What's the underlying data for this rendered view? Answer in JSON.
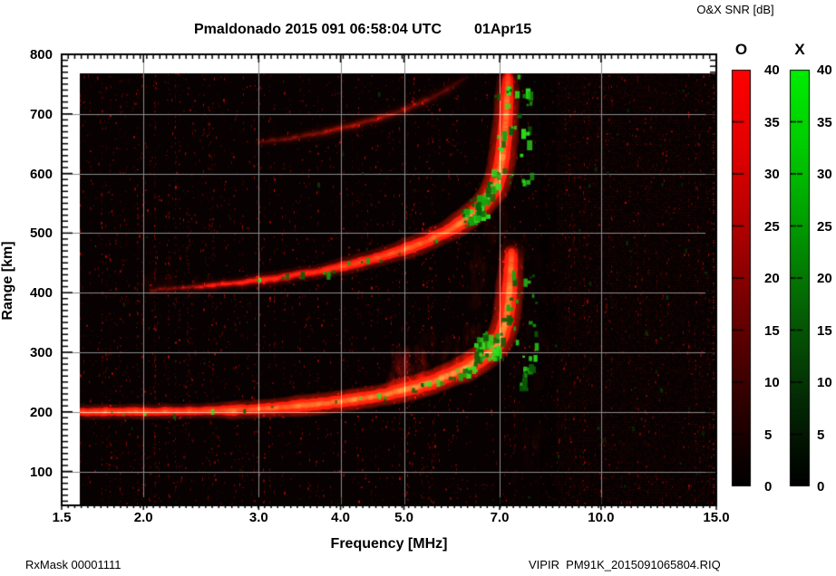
{
  "header": {
    "title": "Pmaldonado 2015 091 06:58:04 UTC",
    "date": "01Apr15",
    "colorbar_title": "O&X SNR [dB]"
  },
  "footer": {
    "left": "RxMask 00001111",
    "right": "VIPIR  PM91K_2015091065804.RIQ"
  },
  "chart_data": {
    "type": "heatmap",
    "title": "Pmaldonado 2015 091 06:58:04 UTC 01Apr15",
    "xlabel": "Frequency [MHz]",
    "ylabel": "Range [km]",
    "x_scale": "log",
    "xlim": [
      1.5,
      15.0
    ],
    "ylim": [
      43,
      800
    ],
    "grid": true,
    "x_ticks": [
      1.5,
      2.0,
      3.0,
      4.0,
      5.0,
      7.0,
      10.0,
      15.0
    ],
    "x_tick_labels": [
      "1.5",
      "2.0",
      "3.0",
      "4.0",
      "5.0",
      "7.0",
      "10.0",
      "15.0"
    ],
    "y_ticks": [
      100,
      200,
      300,
      400,
      500,
      600,
      700,
      800
    ],
    "y_tick_labels": [
      "100",
      "200",
      "300",
      "400",
      "500",
      "600",
      "700",
      "800"
    ],
    "background_color": "#070101",
    "grid_color": "#8c8c8c",
    "o_mode_color": "#ff1e0c",
    "x_mode_color": "#2bd41e",
    "foF2_MHz": 7.3,
    "colorbars": [
      {
        "label": "O",
        "units": "dB",
        "range": [
          0,
          40
        ],
        "ticks": [
          0,
          5,
          10,
          15,
          20,
          25,
          30,
          35,
          40
        ],
        "tick_labels": [
          "0",
          "5",
          "10",
          "15",
          "20",
          "25",
          "30",
          "35",
          "40"
        ],
        "gradient_stops": [
          [
            0,
            "#ff0000"
          ],
          [
            0.18,
            "#e40000"
          ],
          [
            0.38,
            "#b00000"
          ],
          [
            0.58,
            "#6f0000"
          ],
          [
            0.78,
            "#330000"
          ],
          [
            0.93,
            "#0e0000"
          ],
          [
            1,
            "#000000"
          ]
        ]
      },
      {
        "label": "X",
        "units": "dB",
        "range": [
          0,
          40
        ],
        "ticks": [
          0,
          5,
          10,
          15,
          20,
          25,
          30,
          35,
          40
        ],
        "tick_labels": [
          "0",
          "5",
          "10",
          "15",
          "20",
          "25",
          "30",
          "35",
          "40"
        ],
        "gradient_stops": [
          [
            0,
            "#00ee00"
          ],
          [
            0.18,
            "#00cc00"
          ],
          [
            0.38,
            "#009a00"
          ],
          [
            0.58,
            "#056005"
          ],
          [
            0.78,
            "#042d04"
          ],
          [
            0.93,
            "#010c01"
          ],
          [
            1,
            "#000000"
          ]
        ]
      }
    ],
    "series": [
      {
        "name": "F-region 1-hop echo (O-mode)",
        "mode": "O",
        "points": [
          [
            1.6,
            200,
            5,
            0.85
          ],
          [
            1.75,
            200,
            5,
            0.95
          ],
          [
            1.95,
            200,
            5,
            0.9
          ],
          [
            2.15,
            200,
            5,
            0.8
          ],
          [
            2.35,
            201,
            5,
            0.9
          ],
          [
            2.55,
            202,
            5,
            0.95
          ],
          [
            2.75,
            203,
            6,
            0.95
          ],
          [
            3.0,
            205,
            6,
            0.95
          ],
          [
            3.2,
            207,
            6,
            1.0
          ],
          [
            3.45,
            210,
            7,
            1.0
          ],
          [
            3.7,
            213,
            7,
            1.0
          ],
          [
            3.95,
            217,
            7,
            1.0
          ],
          [
            4.2,
            221,
            7,
            1.0
          ],
          [
            4.45,
            225,
            7,
            1.0
          ],
          [
            4.7,
            230,
            7,
            1.0
          ],
          [
            4.95,
            235,
            8,
            1.0
          ],
          [
            5.2,
            241,
            8,
            0.95
          ],
          [
            5.45,
            248,
            8,
            0.95
          ],
          [
            5.7,
            256,
            8,
            0.9
          ],
          [
            5.95,
            264,
            8,
            0.9
          ],
          [
            6.2,
            273,
            9,
            0.9
          ],
          [
            6.45,
            284,
            9,
            0.9
          ],
          [
            6.7,
            296,
            9,
            0.85
          ],
          [
            6.9,
            310,
            9,
            0.85
          ],
          [
            7.05,
            328,
            9,
            0.9
          ],
          [
            7.15,
            350,
            9,
            0.9
          ],
          [
            7.21,
            378,
            9,
            0.9
          ],
          [
            7.25,
            408,
            9,
            0.85
          ],
          [
            7.28,
            440,
            8,
            0.75
          ],
          [
            7.3,
            468,
            8,
            0.6
          ]
        ]
      },
      {
        "name": "F-region 2-hop echo (O-mode)",
        "mode": "O",
        "points": [
          [
            2.05,
            404,
            3,
            0.22
          ],
          [
            2.3,
            408,
            3,
            0.3
          ],
          [
            2.55,
            412,
            4,
            0.45
          ],
          [
            2.8,
            417,
            4,
            0.5
          ],
          [
            3.05,
            421,
            5,
            0.55
          ],
          [
            3.3,
            427,
            5,
            0.55
          ],
          [
            3.55,
            432,
            5,
            0.6
          ],
          [
            3.8,
            438,
            5,
            0.6
          ],
          [
            4.05,
            444,
            6,
            0.65
          ],
          [
            4.3,
            451,
            6,
            0.65
          ],
          [
            4.55,
            458,
            6,
            0.7
          ],
          [
            4.8,
            466,
            6,
            0.7
          ],
          [
            5.05,
            474,
            7,
            0.75
          ],
          [
            5.3,
            482,
            7,
            0.75
          ],
          [
            5.55,
            492,
            7,
            0.8
          ],
          [
            5.8,
            502,
            7,
            0.8
          ],
          [
            6.05,
            514,
            8,
            0.8
          ],
          [
            6.3,
            528,
            8,
            0.85
          ],
          [
            6.55,
            544,
            8,
            0.85
          ],
          [
            6.75,
            560,
            8,
            0.85
          ],
          [
            6.9,
            578,
            9,
            0.9
          ],
          [
            7.0,
            600,
            9,
            0.85
          ],
          [
            7.07,
            628,
            9,
            0.85
          ],
          [
            7.12,
            660,
            9,
            0.8
          ],
          [
            7.16,
            695,
            8,
            0.8
          ],
          [
            7.18,
            725,
            8,
            0.75
          ],
          [
            7.2,
            752,
            7,
            0.7
          ],
          [
            7.21,
            766,
            6,
            0.6
          ]
        ]
      },
      {
        "name": "F-region 3-hop echo (faint)",
        "mode": "O",
        "points": [
          [
            3.0,
            652,
            4,
            0.12
          ],
          [
            3.4,
            660,
            4,
            0.16
          ],
          [
            3.8,
            670,
            5,
            0.18
          ],
          [
            4.2,
            681,
            5,
            0.18
          ],
          [
            4.6,
            693,
            5,
            0.17
          ],
          [
            5.0,
            707,
            5,
            0.15
          ],
          [
            5.4,
            722,
            5,
            0.12
          ],
          [
            5.8,
            740,
            5,
            0.1
          ],
          [
            6.2,
            760,
            4,
            0.08
          ]
        ]
      }
    ],
    "x_mode_regions": [
      {
        "along_series": 1,
        "f": [
          6.3,
          7.2
        ],
        "count": 55,
        "size": [
          3,
          7
        ],
        "jitter": 7,
        "dx": -4,
        "dy": -2
      },
      {
        "along_series": 1,
        "f": [
          2.9,
          6.3
        ],
        "count": 15,
        "size": [
          2,
          5
        ],
        "jitter": 4,
        "dx": 0,
        "dy": -1
      },
      {
        "along_series": 0,
        "f": [
          1.75,
          5.2
        ],
        "count": 13,
        "size": [
          2,
          4
        ],
        "jitter": 3,
        "dx": 0,
        "dy": 0
      },
      {
        "along_series": 0,
        "f": [
          5.2,
          7.28
        ],
        "count": 26,
        "size": [
          3,
          6
        ],
        "jitter": 5,
        "dx": 0,
        "dy": -1
      },
      {
        "rect": true,
        "f": [
          6.4,
          6.92
        ],
        "R": [
          292,
          340
        ],
        "count": 22,
        "size": [
          3,
          7
        ]
      },
      {
        "rect": true,
        "f": [
          7.3,
          7.95
        ],
        "R": [
          228,
          448
        ],
        "count": 28,
        "size": [
          2,
          6
        ]
      },
      {
        "rect": true,
        "f": [
          7.22,
          7.8
        ],
        "R": [
          580,
          770
        ],
        "count": 20,
        "size": [
          2,
          6
        ]
      },
      {
        "rect": true,
        "f": [
          1.62,
          14.8
        ],
        "R": [
          50,
          790
        ],
        "count": 75,
        "size": [
          1,
          3
        ],
        "dim": true
      }
    ],
    "diffuse_patches": [
      {
        "f": [
          4.75,
          5.4
        ],
        "R": [
          245,
          302
        ],
        "count": 70,
        "alpha": 0.09
      },
      {
        "f": [
          5.35,
          6.25
        ],
        "R": [
          255,
          330
        ],
        "count": 45,
        "alpha": 0.05
      },
      {
        "f": [
          6.2,
          7.28
        ],
        "R": [
          300,
          465
        ],
        "count": 60,
        "alpha": 0.06
      },
      {
        "f": [
          7.3,
          8.6
        ],
        "R": [
          80,
          500
        ],
        "count": 70,
        "alpha": 0.035
      },
      {
        "f": [
          2.0,
          2.65
        ],
        "R": [
          398,
          424
        ],
        "count": 25,
        "alpha": 0.05
      },
      {
        "f": [
          6.5,
          7.15
        ],
        "R": [
          480,
          580
        ],
        "count": 35,
        "alpha": 0.05
      }
    ]
  }
}
